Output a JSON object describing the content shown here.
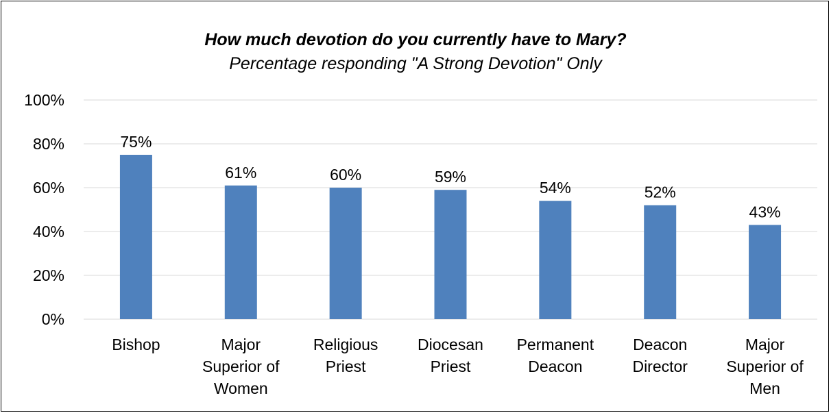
{
  "chart_data": {
    "type": "bar",
    "title": "How much devotion do you currently have to Mary?",
    "subtitle": "Percentage responding \"A Strong Devotion\" Only",
    "categories": [
      [
        "Bishop"
      ],
      [
        "Major",
        "Superior of",
        "Women"
      ],
      [
        "Religious",
        "Priest"
      ],
      [
        "Diocesan",
        "Priest"
      ],
      [
        "Permanent",
        "Deacon"
      ],
      [
        "Deacon",
        "Director"
      ],
      [
        "Major",
        "Superior of",
        "Men"
      ]
    ],
    "values": [
      75,
      61,
      60,
      59,
      54,
      52,
      43
    ],
    "data_labels": [
      "75%",
      "61%",
      "60%",
      "59%",
      "54%",
      "52%",
      "43%"
    ],
    "y_ticks": [
      0,
      20,
      40,
      60,
      80,
      100
    ],
    "y_tick_labels": [
      "0%",
      "20%",
      "40%",
      "60%",
      "80%",
      "100%"
    ],
    "ylim": [
      0,
      100
    ],
    "xlabel": "",
    "ylabel": "",
    "grid": true,
    "legend": "none",
    "bar_color": "#4F81BD",
    "grid_color": "#D9D9D9"
  }
}
